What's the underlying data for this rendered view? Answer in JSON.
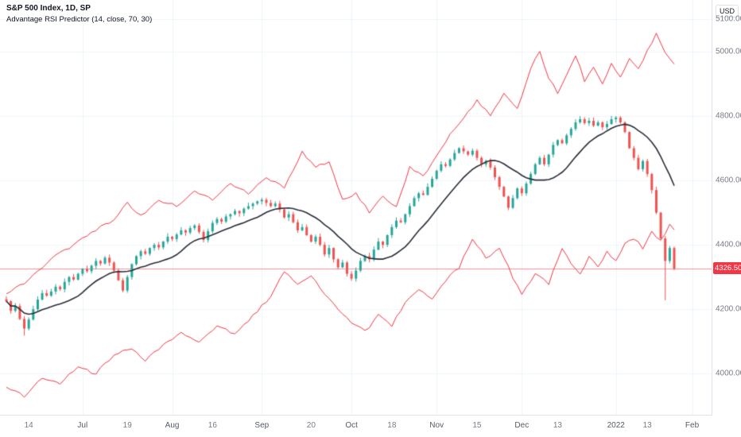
{
  "legend": {
    "title": "S&P 500 Index, 1D, SP",
    "indicator": "Advantage RSI Predictor (14, close, 70, 30)"
  },
  "currency_button": "USD",
  "price_axis": {
    "ticks": [
      {
        "label": "5100.00",
        "value": 5100
      },
      {
        "label": "5000.00",
        "value": 5000
      },
      {
        "label": "4800.00",
        "value": 4800
      },
      {
        "label": "4600.00",
        "value": 4600
      },
      {
        "label": "4400.00",
        "value": 4400
      },
      {
        "label": "4200.00",
        "value": 4200
      },
      {
        "label": "4000.00",
        "value": 4000
      }
    ],
    "last_price_label": "4326.50",
    "last_price_value": 4326.5
  },
  "time_axis": {
    "ticks": [
      {
        "label": "14",
        "i": 5,
        "major": false
      },
      {
        "label": "Jul",
        "i": 17,
        "major": true
      },
      {
        "label": "19",
        "i": 27,
        "major": false
      },
      {
        "label": "Aug",
        "i": 37,
        "major": true
      },
      {
        "label": "16",
        "i": 46,
        "major": false
      },
      {
        "label": "Sep",
        "i": 57,
        "major": true
      },
      {
        "label": "20",
        "i": 68,
        "major": false
      },
      {
        "label": "Oct",
        "i": 77,
        "major": true
      },
      {
        "label": "18",
        "i": 86,
        "major": false
      },
      {
        "label": "Nov",
        "i": 96,
        "major": true
      },
      {
        "label": "15",
        "i": 105,
        "major": false
      },
      {
        "label": "Dec",
        "i": 115,
        "major": true
      },
      {
        "label": "13",
        "i": 123,
        "major": false
      },
      {
        "label": "2022",
        "i": 136,
        "major": true
      },
      {
        "label": "13",
        "i": 143,
        "major": false
      },
      {
        "label": "Feb",
        "i": 153,
        "major": true
      }
    ]
  },
  "colors": {
    "up": "#26a69a",
    "down": "#ef5350",
    "ma": "#2a2e39",
    "band": "#f23645",
    "price_line": "rgba(242,54,69,0.55)",
    "badge": "#f23645",
    "grid": "#f0f3fa",
    "axis_text": "#787b86",
    "axis_border": "#e0e3eb"
  },
  "chart_data": {
    "type": "candlestick",
    "title": "S&P 500 Index",
    "interval": "1D",
    "exchange": "SP",
    "indicator": "Advantage RSI Predictor (14, close, 70, 30)",
    "last_close": 4326.5,
    "price_range": [
      3870,
      5160
    ],
    "x_count": 150,
    "ma_window": 14,
    "closes": [
      4225,
      4195,
      4210,
      4170,
      4140,
      4168,
      4200,
      4230,
      4250,
      4242,
      4255,
      4270,
      4262,
      4285,
      4300,
      4292,
      4310,
      4325,
      4318,
      4335,
      4350,
      4342,
      4360,
      4345,
      4320,
      4290,
      4258,
      4300,
      4340,
      4365,
      4380,
      4372,
      4390,
      4400,
      4392,
      4410,
      4425,
      4418,
      4432,
      4445,
      4438,
      4452,
      4460,
      4440,
      4415,
      4442,
      4468,
      4480,
      4472,
      4488,
      4495,
      4505,
      4498,
      4512,
      4520,
      4528,
      4535,
      4540,
      4530,
      4520,
      4528,
      4510,
      4485,
      4495,
      4470,
      4445,
      4455,
      4430,
      4410,
      4425,
      4400,
      4370,
      4390,
      4355,
      4330,
      4345,
      4310,
      4295,
      4320,
      4350,
      4365,
      4355,
      4385,
      4410,
      4400,
      4430,
      4455,
      4475,
      4470,
      4495,
      4520,
      4545,
      4560,
      4555,
      4580,
      4605,
      4630,
      4650,
      4645,
      4665,
      4685,
      4700,
      4690,
      4680,
      4692,
      4670,
      4650,
      4660,
      4640,
      4610,
      4580,
      4550,
      4515,
      4545,
      4575,
      4560,
      4590,
      4620,
      4650,
      4670,
      4650,
      4680,
      4710,
      4725,
      4715,
      4740,
      4760,
      4780,
      4790,
      4778,
      4785,
      4770,
      4780,
      4765,
      4775,
      4790,
      4795,
      4780,
      4750,
      4700,
      4670,
      4635,
      4660,
      4620,
      4570,
      4500,
      4420,
      4350,
      4390,
      4326.5
    ],
    "lows_override": {
      "4": 4118,
      "147": 4228
    },
    "upper_band_waypoints": [
      [
        0,
        4245
      ],
      [
        5,
        4290
      ],
      [
        10,
        4360
      ],
      [
        15,
        4400
      ],
      [
        20,
        4445
      ],
      [
        24,
        4480
      ],
      [
        27,
        4530
      ],
      [
        30,
        4490
      ],
      [
        34,
        4540
      ],
      [
        38,
        4520
      ],
      [
        42,
        4565
      ],
      [
        46,
        4540
      ],
      [
        50,
        4590
      ],
      [
        54,
        4560
      ],
      [
        58,
        4610
      ],
      [
        62,
        4580
      ],
      [
        66,
        4690
      ],
      [
        69,
        4640
      ],
      [
        72,
        4660
      ],
      [
        75,
        4540
      ],
      [
        78,
        4560
      ],
      [
        81,
        4500
      ],
      [
        84,
        4550
      ],
      [
        87,
        4520
      ],
      [
        90,
        4640
      ],
      [
        93,
        4610
      ],
      [
        96,
        4680
      ],
      [
        99,
        4740
      ],
      [
        102,
        4790
      ],
      [
        105,
        4850
      ],
      [
        108,
        4800
      ],
      [
        111,
        4870
      ],
      [
        114,
        4820
      ],
      [
        117,
        4950
      ],
      [
        119,
        5000
      ],
      [
        121,
        4920
      ],
      [
        123,
        4870
      ],
      [
        125,
        4930
      ],
      [
        127,
        4990
      ],
      [
        129,
        4910
      ],
      [
        131,
        4950
      ],
      [
        133,
        4900
      ],
      [
        135,
        4960
      ],
      [
        137,
        4920
      ],
      [
        139,
        4980
      ],
      [
        141,
        4950
      ],
      [
        143,
        5000
      ],
      [
        145,
        5060
      ],
      [
        147,
        5000
      ],
      [
        149,
        4965
      ]
    ],
    "lower_band_waypoints": [
      [
        0,
        3955
      ],
      [
        4,
        3930
      ],
      [
        8,
        3990
      ],
      [
        12,
        3970
      ],
      [
        16,
        4020
      ],
      [
        20,
        4000
      ],
      [
        24,
        4060
      ],
      [
        28,
        4080
      ],
      [
        31,
        4040
      ],
      [
        35,
        4090
      ],
      [
        39,
        4130
      ],
      [
        43,
        4100
      ],
      [
        47,
        4150
      ],
      [
        51,
        4120
      ],
      [
        55,
        4180
      ],
      [
        59,
        4240
      ],
      [
        62,
        4320
      ],
      [
        65,
        4280
      ],
      [
        68,
        4300
      ],
      [
        71,
        4250
      ],
      [
        74,
        4200
      ],
      [
        77,
        4160
      ],
      [
        80,
        4130
      ],
      [
        83,
        4180
      ],
      [
        86,
        4150
      ],
      [
        89,
        4220
      ],
      [
        92,
        4260
      ],
      [
        95,
        4230
      ],
      [
        98,
        4290
      ],
      [
        101,
        4330
      ],
      [
        104,
        4420
      ],
      [
        107,
        4360
      ],
      [
        110,
        4390
      ],
      [
        113,
        4300
      ],
      [
        115,
        4245
      ],
      [
        118,
        4310
      ],
      [
        121,
        4280
      ],
      [
        124,
        4390
      ],
      [
        126,
        4340
      ],
      [
        128,
        4310
      ],
      [
        130,
        4360
      ],
      [
        132,
        4330
      ],
      [
        134,
        4380
      ],
      [
        136,
        4350
      ],
      [
        138,
        4400
      ],
      [
        140,
        4420
      ],
      [
        142,
        4390
      ],
      [
        144,
        4440
      ],
      [
        146,
        4410
      ],
      [
        148,
        4460
      ],
      [
        149,
        4450
      ]
    ]
  }
}
